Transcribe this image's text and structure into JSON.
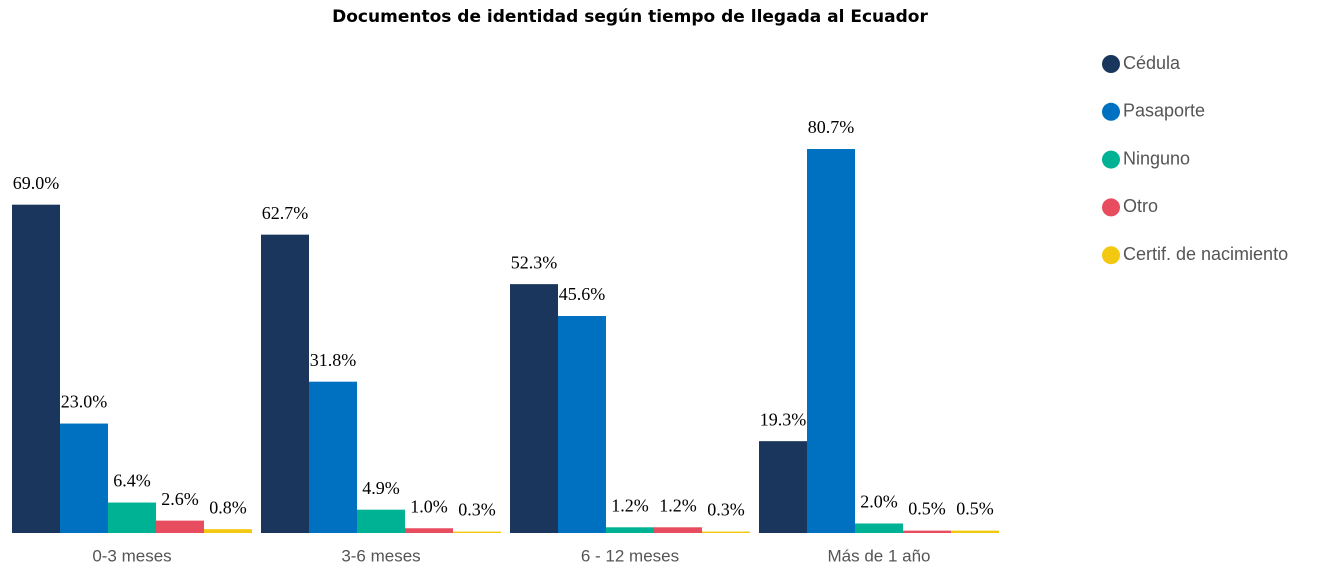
{
  "chart_data": {
    "type": "bar",
    "title": "Documentos de identidad según tiempo de llegada al Ecuador",
    "categories": [
      "0-3 meses",
      "3-6 meses",
      "6 - 12 meses",
      "Más de 1 año"
    ],
    "series": [
      {
        "name": "Cédula",
        "color": "#1b365d",
        "values": [
          69.0,
          62.7,
          52.3,
          19.3
        ],
        "value_labels": [
          "69.0%",
          "62.7%",
          "52.3%",
          "19.3%"
        ]
      },
      {
        "name": "Pasaporte",
        "color": "#0070c0",
        "values": [
          23.0,
          31.8,
          45.6,
          80.7
        ],
        "value_labels": [
          "23.0%",
          "31.8%",
          "45.6%",
          "80.7%"
        ]
      },
      {
        "name": "Ninguno",
        "color": "#00b294",
        "values": [
          6.4,
          4.9,
          1.2,
          2.0
        ],
        "value_labels": [
          "6.4%",
          "4.9%",
          "1.2%",
          "2.0%"
        ]
      },
      {
        "name": "Otro",
        "color": "#e84c5f",
        "values": [
          2.6,
          1.0,
          1.2,
          0.5
        ],
        "value_labels": [
          "2.6%",
          "1.0%",
          "1.2%",
          "0.5%"
        ]
      },
      {
        "name": "Certif. de nacimiento",
        "color": "#f2c811",
        "values": [
          0.8,
          0.3,
          0.3,
          0.5
        ],
        "value_labels": [
          "0.8%",
          "0.3%",
          "0.3%",
          "0.5%"
        ]
      }
    ]
  }
}
